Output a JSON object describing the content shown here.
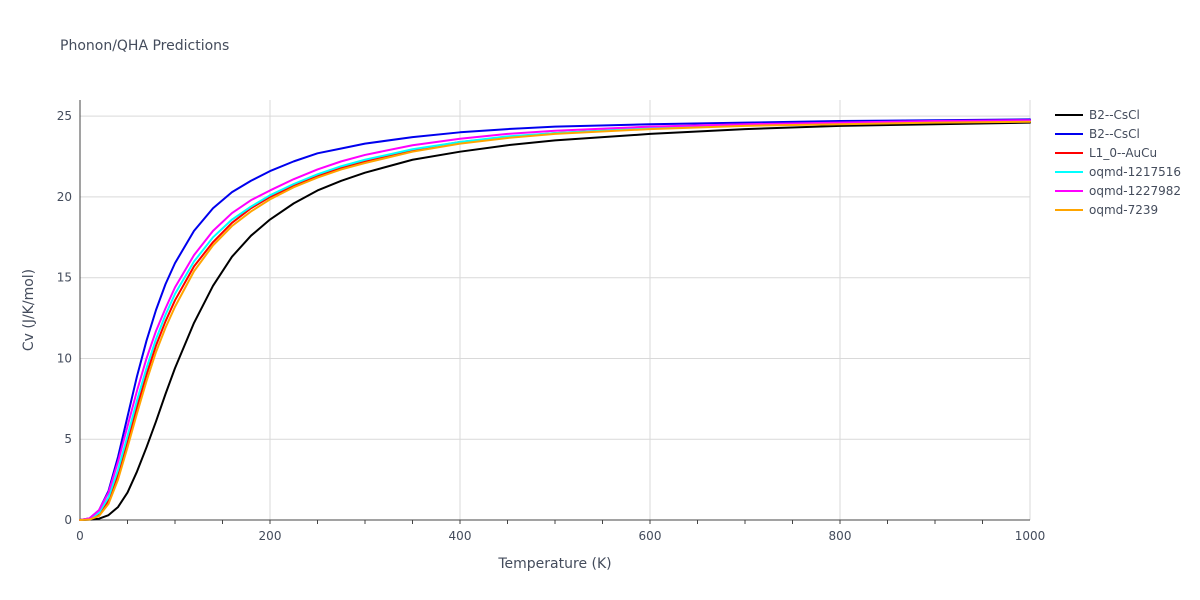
{
  "chart_data": {
    "type": "line",
    "title": "Phonon/QHA Predictions",
    "xlabel": "Temperature (K)",
    "ylabel": "Cv (J/K/mol)",
    "xlim": [
      0,
      1000
    ],
    "ylim": [
      0,
      26
    ],
    "xticks": [
      0,
      200,
      400,
      600,
      800,
      1000
    ],
    "yticks": [
      0,
      5,
      10,
      15,
      20,
      25
    ],
    "grid": true,
    "legend_position": "right",
    "series": [
      {
        "name": "B2--CsCl",
        "color": "#000000",
        "x": [
          0,
          10,
          20,
          30,
          40,
          50,
          60,
          70,
          80,
          90,
          100,
          120,
          140,
          160,
          180,
          200,
          225,
          250,
          275,
          300,
          350,
          400,
          450,
          500,
          600,
          700,
          800,
          900,
          1000
        ],
        "y": [
          0,
          0.02,
          0.08,
          0.3,
          0.8,
          1.7,
          3.0,
          4.5,
          6.1,
          7.8,
          9.4,
          12.2,
          14.5,
          16.3,
          17.6,
          18.6,
          19.6,
          20.4,
          21.0,
          21.5,
          22.3,
          22.8,
          23.2,
          23.5,
          23.9,
          24.2,
          24.4,
          24.5,
          24.6
        ]
      },
      {
        "name": "B2--CsCl",
        "color": "#0000ee",
        "x": [
          0,
          10,
          20,
          30,
          40,
          50,
          60,
          70,
          80,
          90,
          100,
          120,
          140,
          160,
          180,
          200,
          225,
          250,
          275,
          300,
          350,
          400,
          450,
          500,
          600,
          700,
          800,
          900,
          1000
        ],
        "y": [
          0,
          0.1,
          0.6,
          1.8,
          3.9,
          6.4,
          8.9,
          11.1,
          13.0,
          14.6,
          15.9,
          17.9,
          19.3,
          20.3,
          21.0,
          21.6,
          22.2,
          22.7,
          23.0,
          23.3,
          23.7,
          24.0,
          24.2,
          24.35,
          24.5,
          24.6,
          24.7,
          24.75,
          24.8
        ]
      },
      {
        "name": "L1_0--AuCu",
        "color": "#ff0000",
        "x": [
          0,
          10,
          20,
          30,
          40,
          50,
          60,
          70,
          80,
          90,
          100,
          120,
          140,
          160,
          180,
          200,
          225,
          250,
          275,
          300,
          350,
          400,
          450,
          500,
          600,
          700,
          800,
          900,
          1000
        ],
        "y": [
          0,
          0.05,
          0.35,
          1.2,
          2.8,
          4.8,
          7.0,
          9.0,
          10.8,
          12.3,
          13.6,
          15.7,
          17.2,
          18.4,
          19.3,
          20.0,
          20.7,
          21.3,
          21.8,
          22.2,
          22.9,
          23.4,
          23.7,
          23.95,
          24.25,
          24.45,
          24.55,
          24.65,
          24.7
        ]
      },
      {
        "name": "oqmd-1217516",
        "color": "#00ffff",
        "x": [
          0,
          10,
          20,
          30,
          40,
          50,
          60,
          70,
          80,
          90,
          100,
          120,
          140,
          160,
          180,
          200,
          225,
          250,
          275,
          300,
          350,
          400,
          450,
          500,
          600,
          700,
          800,
          900,
          1000
        ],
        "y": [
          0,
          0.06,
          0.45,
          1.4,
          3.1,
          5.2,
          7.4,
          9.4,
          11.2,
          12.7,
          14.0,
          16.0,
          17.5,
          18.6,
          19.4,
          20.1,
          20.8,
          21.4,
          21.9,
          22.3,
          22.95,
          23.4,
          23.75,
          23.95,
          24.25,
          24.45,
          24.55,
          24.65,
          24.7
        ]
      },
      {
        "name": "oqmd-1227982",
        "color": "#ff00ff",
        "x": [
          0,
          10,
          20,
          30,
          40,
          50,
          60,
          70,
          80,
          90,
          100,
          120,
          140,
          160,
          180,
          200,
          225,
          250,
          275,
          300,
          350,
          400,
          450,
          500,
          600,
          700,
          800,
          900,
          1000
        ],
        "y": [
          0,
          0.1,
          0.6,
          1.7,
          3.6,
          5.8,
          8.0,
          10.0,
          11.7,
          13.1,
          14.4,
          16.4,
          17.9,
          19.0,
          19.8,
          20.4,
          21.1,
          21.7,
          22.2,
          22.6,
          23.2,
          23.6,
          23.9,
          24.1,
          24.35,
          24.5,
          24.6,
          24.7,
          24.75
        ]
      },
      {
        "name": "oqmd-7239",
        "color": "#ffa500",
        "x": [
          0,
          10,
          20,
          30,
          40,
          50,
          60,
          70,
          80,
          90,
          100,
          120,
          140,
          160,
          180,
          200,
          225,
          250,
          275,
          300,
          350,
          400,
          450,
          500,
          600,
          700,
          800,
          900,
          1000
        ],
        "y": [
          0,
          0.03,
          0.25,
          1.0,
          2.5,
          4.5,
          6.6,
          8.6,
          10.4,
          11.9,
          13.2,
          15.4,
          17.0,
          18.2,
          19.1,
          19.85,
          20.6,
          21.2,
          21.7,
          22.1,
          22.8,
          23.3,
          23.65,
          23.9,
          24.2,
          24.4,
          24.5,
          24.6,
          24.65
        ]
      }
    ]
  }
}
